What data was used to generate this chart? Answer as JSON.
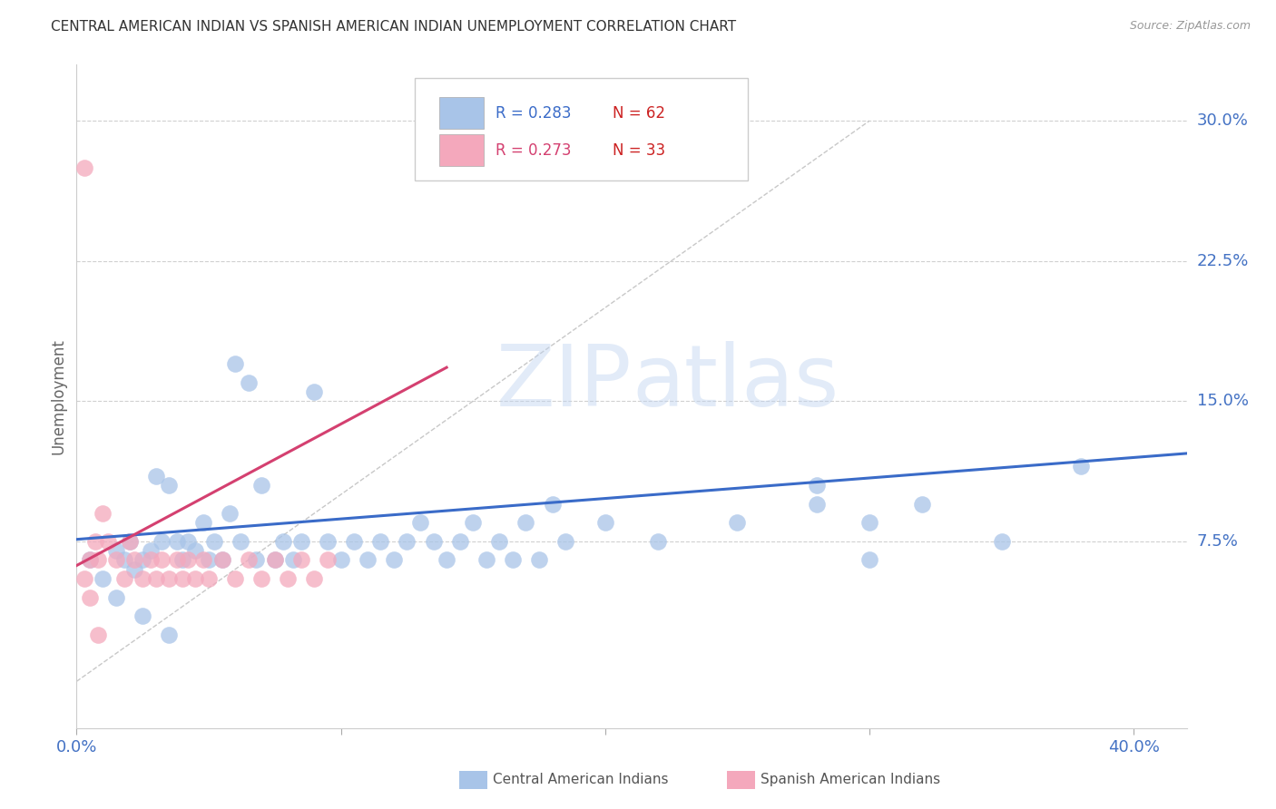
{
  "title": "CENTRAL AMERICAN INDIAN VS SPANISH AMERICAN INDIAN UNEMPLOYMENT CORRELATION CHART",
  "source": "Source: ZipAtlas.com",
  "ylabel": "Unemployment",
  "ytick_labels": [
    "30.0%",
    "22.5%",
    "15.0%",
    "7.5%"
  ],
  "ytick_values": [
    0.3,
    0.225,
    0.15,
    0.075
  ],
  "xlim": [
    0.0,
    0.42
  ],
  "ylim": [
    -0.025,
    0.33
  ],
  "watermark_zip": "ZIP",
  "watermark_atlas": "atlas",
  "legend_blue_r": "R = 0.283",
  "legend_blue_n": "N = 62",
  "legend_pink_r": "R = 0.273",
  "legend_pink_n": "N = 33",
  "legend_blue_label": "Central American Indians",
  "legend_pink_label": "Spanish American Indians",
  "blue_color": "#a8c4e8",
  "pink_color": "#f4a8bc",
  "blue_line_color": "#3a6bc8",
  "pink_line_color": "#d44070",
  "diagonal_color": "#c8c8c8",
  "blue_r_color": "#3a6bc8",
  "pink_r_color": "#d44070",
  "n_color": "#cc2222",
  "blue_line_x": [
    0.0,
    0.42
  ],
  "blue_line_y": [
    0.076,
    0.122
  ],
  "pink_line_x": [
    0.0,
    0.14
  ],
  "pink_line_y": [
    0.062,
    0.168
  ],
  "diag_line_x": [
    0.0,
    0.3
  ],
  "diag_line_y": [
    0.0,
    0.3
  ],
  "blue_x": [
    0.005,
    0.01,
    0.015,
    0.018,
    0.02,
    0.022,
    0.025,
    0.028,
    0.03,
    0.032,
    0.035,
    0.038,
    0.04,
    0.042,
    0.045,
    0.048,
    0.05,
    0.052,
    0.055,
    0.058,
    0.06,
    0.062,
    0.065,
    0.068,
    0.07,
    0.075,
    0.078,
    0.082,
    0.085,
    0.09,
    0.095,
    0.1,
    0.105,
    0.11,
    0.115,
    0.12,
    0.125,
    0.13,
    0.135,
    0.14,
    0.145,
    0.15,
    0.155,
    0.16,
    0.165,
    0.17,
    0.175,
    0.18,
    0.185,
    0.2,
    0.22,
    0.25,
    0.28,
    0.3,
    0.32,
    0.35,
    0.38,
    0.015,
    0.025,
    0.035,
    0.28,
    0.3
  ],
  "blue_y": [
    0.065,
    0.055,
    0.07,
    0.065,
    0.075,
    0.06,
    0.065,
    0.07,
    0.11,
    0.075,
    0.105,
    0.075,
    0.065,
    0.075,
    0.07,
    0.085,
    0.065,
    0.075,
    0.065,
    0.09,
    0.17,
    0.075,
    0.16,
    0.065,
    0.105,
    0.065,
    0.075,
    0.065,
    0.075,
    0.155,
    0.075,
    0.065,
    0.075,
    0.065,
    0.075,
    0.065,
    0.075,
    0.085,
    0.075,
    0.065,
    0.075,
    0.085,
    0.065,
    0.075,
    0.065,
    0.085,
    0.065,
    0.095,
    0.075,
    0.085,
    0.075,
    0.085,
    0.095,
    0.085,
    0.095,
    0.075,
    0.115,
    0.045,
    0.035,
    0.025,
    0.105,
    0.065
  ],
  "pink_x": [
    0.003,
    0.005,
    0.007,
    0.008,
    0.01,
    0.012,
    0.015,
    0.018,
    0.02,
    0.022,
    0.025,
    0.028,
    0.03,
    0.032,
    0.035,
    0.038,
    0.04,
    0.042,
    0.045,
    0.048,
    0.05,
    0.055,
    0.06,
    0.065,
    0.07,
    0.075,
    0.08,
    0.085,
    0.09,
    0.095,
    0.003,
    0.005,
    0.008
  ],
  "pink_y": [
    0.275,
    0.065,
    0.075,
    0.065,
    0.09,
    0.075,
    0.065,
    0.055,
    0.075,
    0.065,
    0.055,
    0.065,
    0.055,
    0.065,
    0.055,
    0.065,
    0.055,
    0.065,
    0.055,
    0.065,
    0.055,
    0.065,
    0.055,
    0.065,
    0.055,
    0.065,
    0.055,
    0.065,
    0.055,
    0.065,
    0.055,
    0.045,
    0.025
  ]
}
